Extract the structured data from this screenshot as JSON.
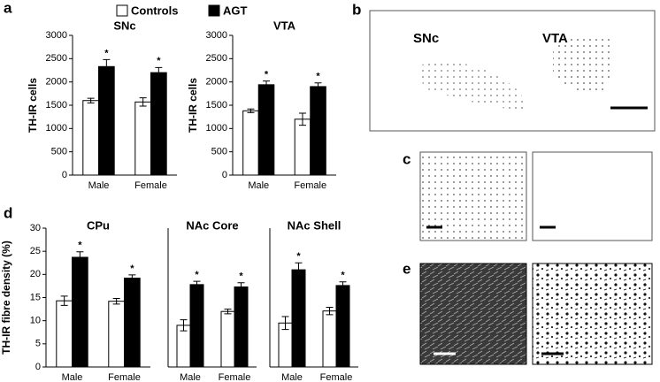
{
  "panel_labels": [
    "a",
    "b",
    "c",
    "d",
    "e"
  ],
  "image_labels": [
    "SNc",
    "VTA"
  ],
  "chart_data": [
    {
      "type": "bar",
      "title": "SNc",
      "y_label": "TH-IR cells",
      "categories": [
        "Male",
        "Female"
      ],
      "series": [
        {
          "name": "Controls",
          "color": "#ffffff",
          "values": [
            1600,
            1570
          ],
          "errors": [
            50,
            90
          ]
        },
        {
          "name": "AGT",
          "color": "#000000",
          "values": [
            2330,
            2200
          ],
          "errors": [
            150,
            110
          ],
          "annotations": [
            "*",
            "*"
          ]
        }
      ],
      "ylim": [
        0,
        3000
      ],
      "yticks": [
        0,
        500,
        1000,
        1500,
        2000,
        2500,
        3000
      ]
    },
    {
      "type": "bar",
      "title": "VTA",
      "y_label": "TH-IR cells",
      "categories": [
        "Male",
        "Female"
      ],
      "series": [
        {
          "name": "Controls",
          "color": "#ffffff",
          "values": [
            1380,
            1200
          ],
          "errors": [
            40,
            130
          ]
        },
        {
          "name": "AGT",
          "color": "#000000",
          "values": [
            1940,
            1900
          ],
          "errors": [
            80,
            80
          ],
          "annotations": [
            "*",
            "*"
          ]
        }
      ],
      "ylim": [
        0,
        3000
      ],
      "yticks": [
        0,
        500,
        1000,
        1500,
        2000,
        2500,
        3000
      ]
    },
    {
      "type": "bar",
      "title": "CPu",
      "y_label": "TH-IR fibre density (%)",
      "categories": [
        "Male",
        "Female"
      ],
      "series": [
        {
          "name": "Controls",
          "color": "#ffffff",
          "values": [
            14.3,
            14.2
          ],
          "errors": [
            1,
            0.6
          ]
        },
        {
          "name": "AGT",
          "color": "#000000",
          "values": [
            23.7,
            19.2
          ],
          "errors": [
            1.2,
            0.7
          ],
          "annotations": [
            "*",
            "*"
          ]
        }
      ],
      "ylim": [
        0,
        30
      ],
      "yticks": [
        0,
        5,
        10,
        15,
        20,
        25,
        30
      ]
    },
    {
      "type": "bar",
      "title": "NAc Core",
      "categories": [
        "Male",
        "Female"
      ],
      "series": [
        {
          "name": "Controls",
          "color": "#ffffff",
          "values": [
            9,
            12
          ],
          "errors": [
            1.2,
            0.5
          ]
        },
        {
          "name": "AGT",
          "color": "#000000",
          "values": [
            17.8,
            17.3
          ],
          "errors": [
            0.7,
            0.9
          ],
          "annotations": [
            "*",
            "*"
          ]
        }
      ],
      "ylim": [
        0,
        30
      ]
    },
    {
      "type": "bar",
      "title": "NAc Shell",
      "categories": [
        "Male",
        "Female"
      ],
      "series": [
        {
          "name": "Controls",
          "color": "#ffffff",
          "values": [
            9.5,
            12.1
          ],
          "errors": [
            1.4,
            0.8
          ]
        },
        {
          "name": "AGT",
          "color": "#000000",
          "values": [
            21,
            17.6
          ],
          "errors": [
            1.5,
            0.8
          ],
          "annotations": [
            "*",
            "*"
          ]
        }
      ],
      "ylim": [
        0,
        30
      ]
    }
  ]
}
